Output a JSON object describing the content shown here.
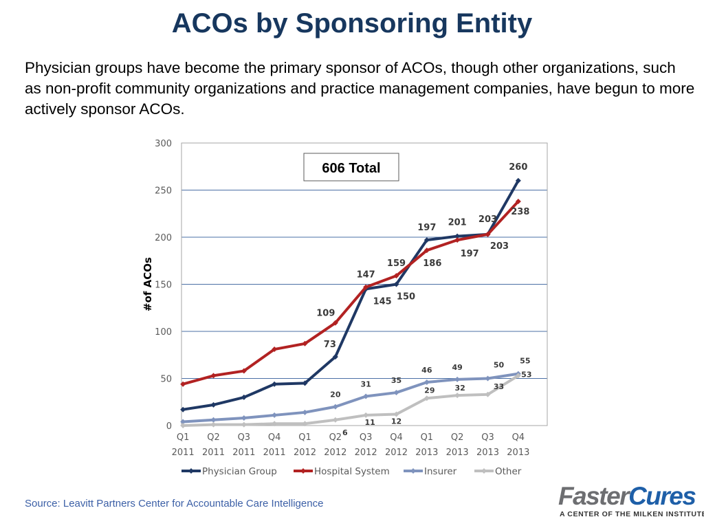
{
  "header": {
    "title": "ACOs by Sponsoring Entity",
    "intro": "Physician groups have become the primary sponsor of ACOs, though other organizations, such as non-profit community organizations and practice management companies, have begun to more actively sponsor ACOs."
  },
  "footer": {
    "source": "Source: Leavitt Partners Center for Accountable Care Intelligence",
    "logo_part1": "Faster",
    "logo_part2": "Cures",
    "logo_tagline": "A CENTER OF THE MILKEN INSTITUTE"
  },
  "chart_data": {
    "type": "line",
    "title": "",
    "xlabel": "",
    "ylabel": "#of ACOs",
    "ylim": [
      0,
      300
    ],
    "yticks": [
      0,
      50,
      100,
      150,
      200,
      250,
      300
    ],
    "grid": true,
    "legend_position": "bottom",
    "annotation": "606 Total",
    "categories": [
      [
        "Q1",
        "2011"
      ],
      [
        "Q2",
        "2011"
      ],
      [
        "Q3",
        "2011"
      ],
      [
        "Q4",
        "2011"
      ],
      [
        "Q1",
        "2012"
      ],
      [
        "Q2",
        "2012"
      ],
      [
        "Q3",
        "2012"
      ],
      [
        "Q4",
        "2012"
      ],
      [
        "Q1",
        "2013"
      ],
      [
        "Q2",
        "2013"
      ],
      [
        "Q3",
        "2013"
      ],
      [
        "Q4",
        "2013"
      ]
    ],
    "series": [
      {
        "name": "Physician Group",
        "color": "#1f3864",
        "values": [
          17,
          22,
          30,
          44,
          45,
          73,
          145,
          150,
          197,
          201,
          203,
          260
        ],
        "labels": [
          "",
          "",
          "",
          "",
          "",
          "73",
          "145",
          "150",
          "197",
          "201",
          "203",
          "260"
        ]
      },
      {
        "name": "Hospital System",
        "color": "#b22222",
        "values": [
          44,
          53,
          58,
          81,
          87,
          109,
          147,
          159,
          186,
          197,
          203,
          238
        ],
        "labels": [
          "",
          "",
          "",
          "",
          "",
          "109",
          "147",
          "159",
          "186",
          "197",
          "203",
          "238"
        ]
      },
      {
        "name": "Insurer",
        "color": "#7f93bd",
        "values": [
          4,
          6,
          8,
          11,
          14,
          20,
          31,
          35,
          46,
          49,
          50,
          55
        ],
        "labels": [
          "",
          "",
          "",
          "",
          "",
          "20",
          "31",
          "35",
          "46",
          "49",
          "50",
          "55"
        ]
      },
      {
        "name": "Other",
        "color": "#bfbfbf",
        "values": [
          0,
          1,
          1,
          2,
          2,
          6,
          11,
          12,
          29,
          32,
          33,
          53
        ],
        "labels": [
          "",
          "",
          "",
          "",
          "",
          "6",
          "11",
          "12",
          "29",
          "32",
          "33",
          "53"
        ]
      }
    ]
  }
}
